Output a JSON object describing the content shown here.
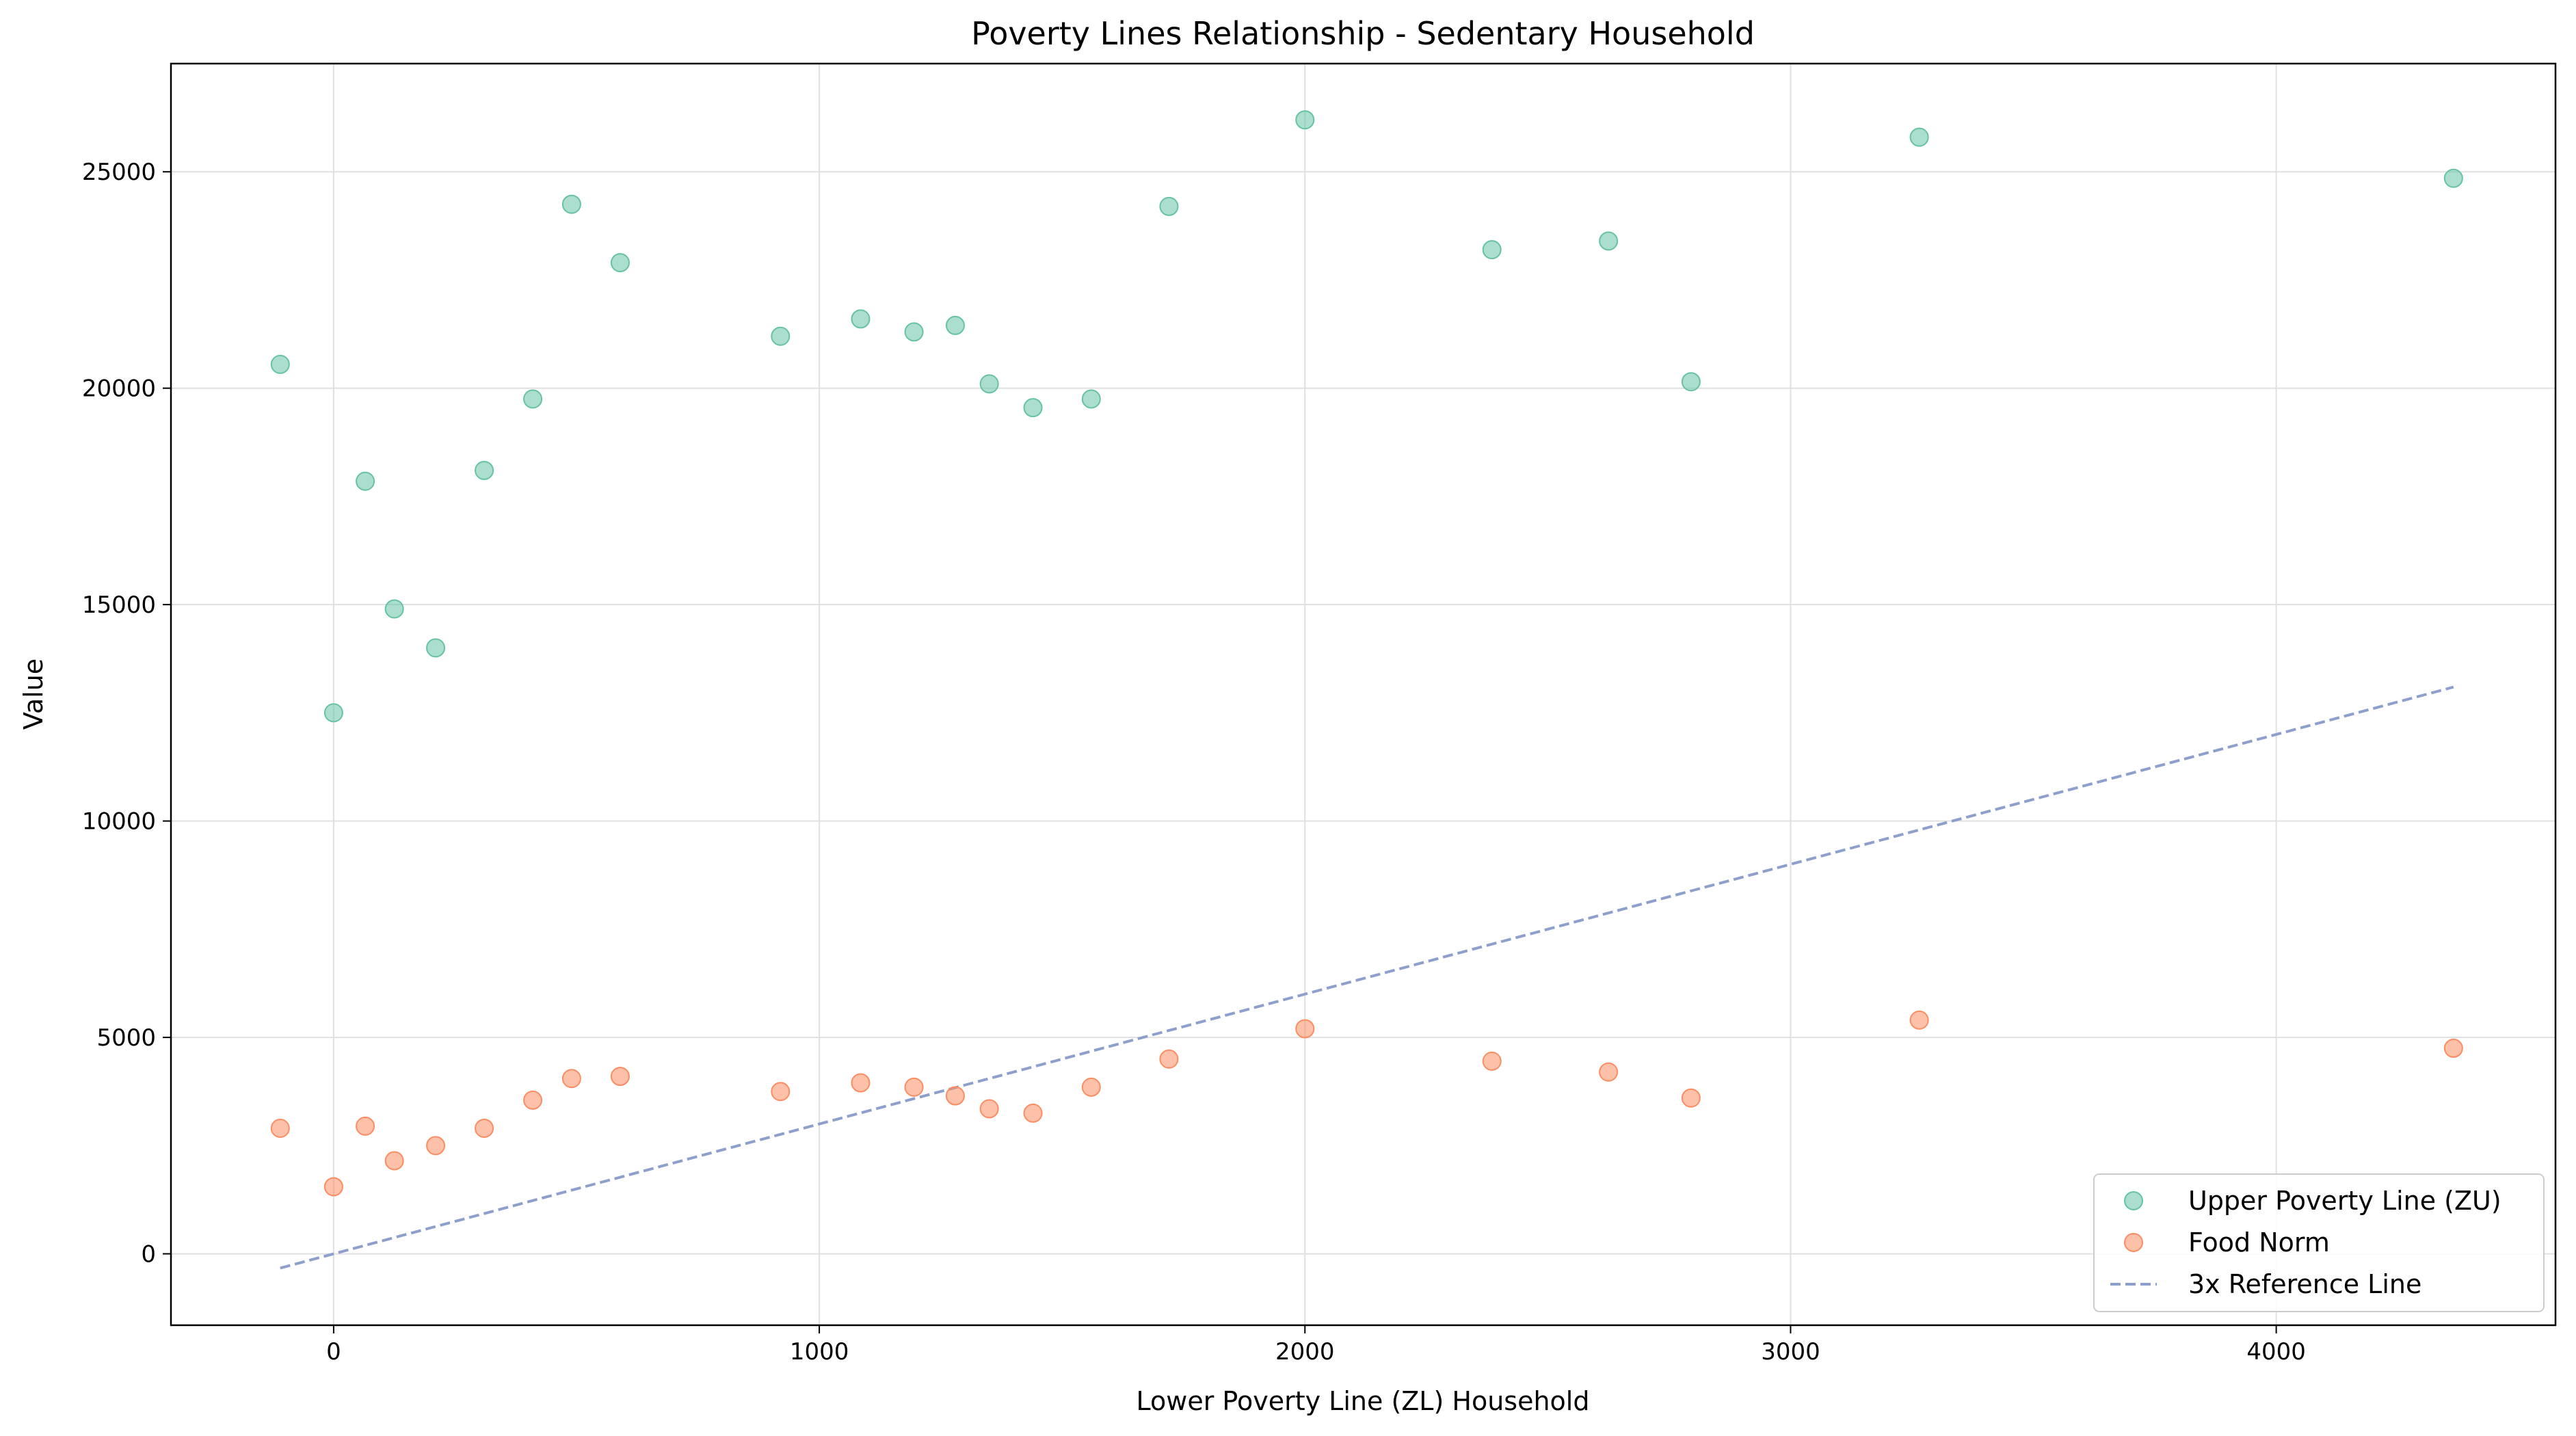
{
  "chart_data": {
    "type": "scatter",
    "title": "Poverty Lines Relationship - Sedentary Household",
    "xlabel": "Lower Poverty Line (ZL) Household",
    "ylabel": "Value",
    "xlim": [
      -335,
      4575
    ],
    "ylim": [
      -1650,
      27500
    ],
    "x_ticks": [
      0,
      1000,
      2000,
      3000,
      4000
    ],
    "x_tick_labels": [
      "0",
      "1000",
      "2000",
      "3000",
      "4000"
    ],
    "y_ticks": [
      0,
      5000,
      10000,
      15000,
      20000,
      25000
    ],
    "y_tick_labels": [
      "0",
      "5000",
      "10000",
      "15000",
      "20000",
      "25000"
    ],
    "grid": true,
    "legend_position": "lower-right",
    "x": [
      -110,
      0,
      65,
      125,
      210,
      310,
      410,
      490,
      590,
      920,
      1085,
      1195,
      1280,
      1350,
      1440,
      1560,
      1720,
      2000,
      2385,
      2625,
      2795,
      3265,
      4365
    ],
    "series": [
      {
        "name": "Upper Poverty Line (ZU)",
        "kind": "scatter",
        "color": "#66c2a5",
        "values": [
          20550,
          12500,
          17850,
          14900,
          14000,
          18100,
          19750,
          24250,
          22900,
          21200,
          21600,
          21300,
          21450,
          20100,
          19550,
          19750,
          24200,
          26200,
          23200,
          23400,
          20150,
          25800,
          24850
        ]
      },
      {
        "name": "Food Norm",
        "kind": "scatter",
        "color": "#fc8d62",
        "values": [
          2900,
          1550,
          2950,
          2150,
          2500,
          2900,
          3550,
          4050,
          4100,
          3750,
          3950,
          3850,
          3650,
          3350,
          3250,
          3850,
          4500,
          5200,
          4450,
          4200,
          3600,
          5400,
          4750
        ]
      }
    ],
    "reference_line": {
      "name": "3x Reference Line",
      "color": "#8da0cb",
      "x": [
        -110,
        4365
      ],
      "y": [
        -330,
        13095
      ]
    }
  }
}
